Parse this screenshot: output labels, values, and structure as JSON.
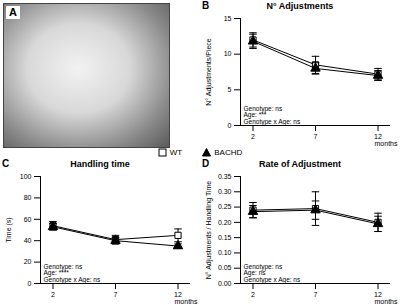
{
  "image_panel": {
    "label": "A"
  },
  "chart_data": [
    {
      "type": "line",
      "panel": "B",
      "title": "N° Adjustments",
      "x": [
        2,
        7,
        12
      ],
      "xlim": [
        1,
        13
      ],
      "xticks": [
        2,
        7,
        12
      ],
      "x_label": "months",
      "y_label": "N° Adjustments/Piece",
      "ylim": [
        0,
        15
      ],
      "yticks": [
        0,
        5,
        10,
        15
      ],
      "annotations": [
        "Genotype: ns",
        "Age: ***",
        "Genotype x Age: ns"
      ],
      "series": [
        {
          "name": "WT",
          "color": "#000000",
          "marker": "square-open",
          "line_style": "solid",
          "values": [
            12,
            8.5,
            7.2
          ],
          "errors": [
            1,
            1.2,
            0.8
          ]
        },
        {
          "name": "BACHD",
          "color": "#000000",
          "marker": "triangle",
          "line_style": "solid",
          "values": [
            11.8,
            8,
            7
          ],
          "errors": [
            1,
            0.8,
            0.7
          ]
        }
      ]
    },
    {
      "type": "line",
      "panel": "C",
      "title": "Handling time",
      "x": [
        2,
        7,
        12
      ],
      "xlim": [
        1,
        13
      ],
      "xticks": [
        2,
        7,
        12
      ],
      "x_label": "months",
      "y_label": "Time (s)",
      "ylim": [
        0,
        100
      ],
      "yticks": [
        0,
        20,
        40,
        60,
        80,
        100
      ],
      "annotations": [
        "Genotype: ns",
        "Age: ****",
        "Genotype x Age: ns"
      ],
      "series": [
        {
          "name": "WT",
          "color": "#000000",
          "marker": "square-open",
          "line_style": "solid",
          "values": [
            54,
            41,
            45
          ],
          "errors": [
            4,
            4,
            6
          ]
        },
        {
          "name": "BACHD",
          "color": "#000000",
          "marker": "triangle",
          "line_style": "solid",
          "values": [
            53,
            40,
            35
          ],
          "errors": [
            3,
            3,
            2
          ]
        }
      ]
    },
    {
      "type": "line",
      "panel": "D",
      "title": "Rate of Adjustment",
      "x": [
        2,
        7,
        12
      ],
      "xlim": [
        1,
        13
      ],
      "xticks": [
        2,
        7,
        12
      ],
      "x_label": "months",
      "y_label": "N° Adjustments / Handling Time",
      "ylim": [
        0,
        0.35
      ],
      "yticks": [
        {
          "value": 0,
          "label": "0.00"
        },
        {
          "value": 0.05,
          "label": "0.05"
        },
        {
          "value": 0.1,
          "label": "0.10"
        },
        {
          "value": 0.15,
          "label": "0.15"
        },
        {
          "value": 0.2,
          "label": "0.20"
        },
        {
          "value": 0.25,
          "label": "0.25"
        },
        {
          "value": 0.3,
          "label": "0.30"
        },
        {
          "value": 0.35,
          "label": "0.35"
        }
      ],
      "annotations": [
        "Genotype: ns",
        "Age: ns",
        "Genotype x Age: ns"
      ],
      "series": [
        {
          "name": "WT",
          "color": "#000000",
          "marker": "square-open",
          "line_style": "solid",
          "values": [
            0.24,
            0.245,
            0.2
          ],
          "errors": [
            0.025,
            0.055,
            0.03
          ]
        },
        {
          "name": "BACHD",
          "color": "#000000",
          "marker": "triangle",
          "line_style": "solid",
          "values": [
            0.235,
            0.24,
            0.195
          ],
          "errors": [
            0.02,
            0.03,
            0.025
          ]
        }
      ]
    }
  ]
}
